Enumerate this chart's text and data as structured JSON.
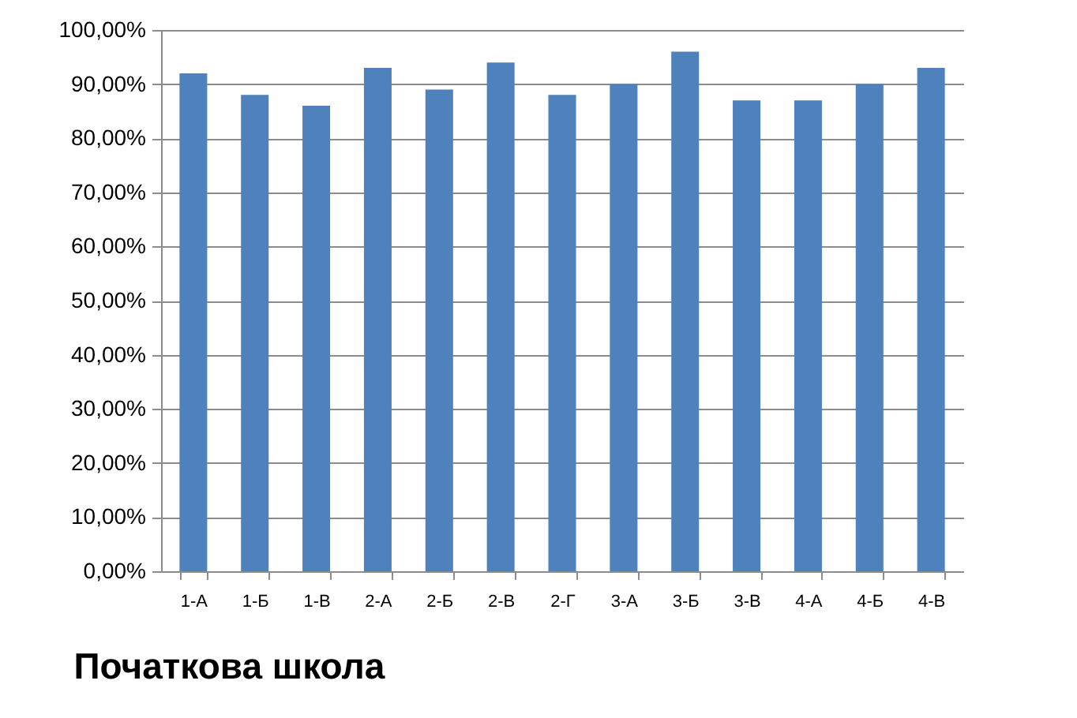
{
  "chart_data": {
    "type": "bar",
    "title": "Початкова школа",
    "categories": [
      "1-А",
      "1-Б",
      "1-В",
      "2-А",
      "2-Б",
      "2-В",
      "2-Г",
      "3-А",
      "3-Б",
      "3-В",
      "4-А",
      "4-Б",
      "4-В"
    ],
    "values": [
      92,
      88,
      86,
      93,
      89,
      94,
      88,
      90,
      96,
      87,
      87,
      90,
      93
    ],
    "color": "#4f81bd",
    "ylim": [
      0,
      100
    ],
    "yticks": [
      {
        "value": 0,
        "label": "0,00%"
      },
      {
        "value": 10,
        "label": "10,00%"
      },
      {
        "value": 20,
        "label": "20,00%"
      },
      {
        "value": 30,
        "label": "30,00%"
      },
      {
        "value": 40,
        "label": "40,00%"
      },
      {
        "value": 50,
        "label": "50,00%"
      },
      {
        "value": 60,
        "label": "60,00%"
      },
      {
        "value": 70,
        "label": "70,00%"
      },
      {
        "value": 80,
        "label": "80,00%"
      },
      {
        "value": 90,
        "label": "90,00%"
      },
      {
        "value": 100,
        "label": "100,00%"
      }
    ],
    "grid": "y"
  }
}
